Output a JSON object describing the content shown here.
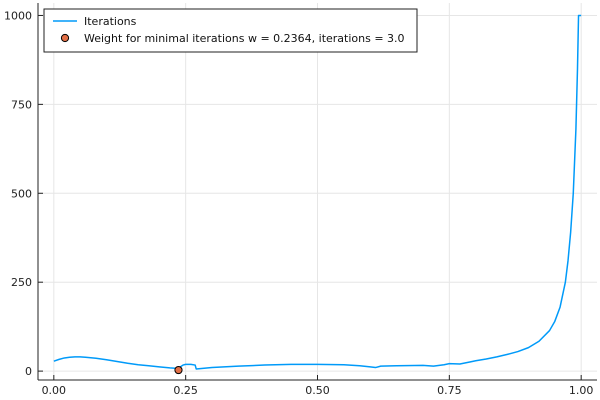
{
  "chart_data": {
    "type": "line",
    "title": "",
    "xlabel": "",
    "ylabel": "",
    "xlim": [
      -0.03,
      1.03
    ],
    "ylim": [
      -25,
      1035
    ],
    "grid": true,
    "legend_position": "top-left",
    "x_ticks": [
      0.0,
      0.25,
      0.5,
      0.75,
      1.0
    ],
    "x_tick_labels": [
      "0.00",
      "0.25",
      "0.50",
      "0.75",
      "1.00"
    ],
    "y_ticks": [
      0,
      250,
      500,
      750,
      1000
    ],
    "y_tick_labels": [
      "0",
      "250",
      "500",
      "750",
      "1000"
    ],
    "series": [
      {
        "name": "Iterations",
        "kind": "line",
        "color": "#009af9",
        "x": [
          0.0,
          0.01,
          0.02,
          0.03,
          0.04,
          0.05,
          0.06,
          0.08,
          0.1,
          0.12,
          0.14,
          0.16,
          0.18,
          0.2,
          0.22,
          0.23,
          0.2364,
          0.24,
          0.245,
          0.25,
          0.26,
          0.268,
          0.27,
          0.3,
          0.35,
          0.4,
          0.45,
          0.5,
          0.55,
          0.58,
          0.6,
          0.61,
          0.62,
          0.65,
          0.7,
          0.72,
          0.74,
          0.75,
          0.77,
          0.79,
          0.8,
          0.82,
          0.84,
          0.86,
          0.88,
          0.9,
          0.92,
          0.94,
          0.95,
          0.96,
          0.97,
          0.975,
          0.98,
          0.985,
          0.99,
          0.993,
          0.995,
          0.997,
          0.999,
          1.0
        ],
        "y": [
          28,
          33,
          37,
          39,
          40,
          40,
          39,
          36,
          32,
          27,
          22,
          18,
          15,
          12,
          9,
          8,
          3,
          12,
          17,
          19,
          19,
          17,
          6,
          10,
          14,
          17,
          19,
          19,
          18,
          15,
          12,
          10,
          14,
          15,
          16,
          14,
          18,
          21,
          20,
          26,
          29,
          34,
          40,
          47,
          55,
          66,
          84,
          114,
          140,
          180,
          250,
          310,
          390,
          500,
          680,
          850,
          1000,
          1000,
          1000,
          1000
        ]
      },
      {
        "name": "Weight for minimal iterations w = 0.2364, iterations = 3.0",
        "kind": "scatter",
        "color": "#e26f46",
        "x": [
          0.2364
        ],
        "y": [
          3.0
        ]
      }
    ]
  }
}
